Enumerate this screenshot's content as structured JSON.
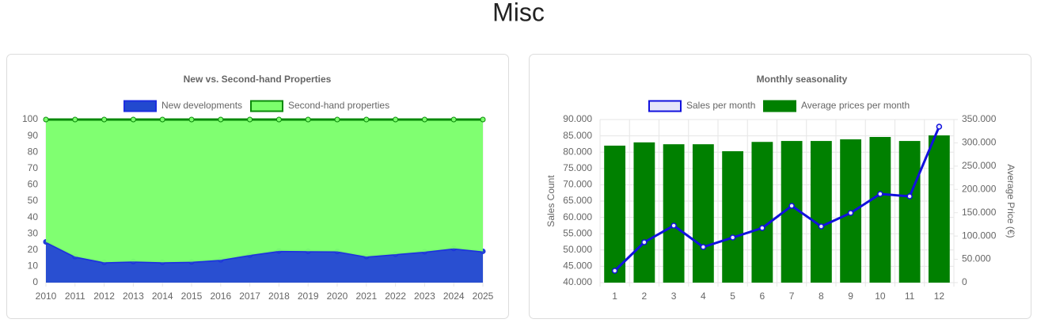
{
  "page_title": "Misc",
  "chart_data": [
    {
      "type": "area",
      "stacked": true,
      "title": "New vs. Second-hand Properties",
      "categories": [
        "2010",
        "2011",
        "2012",
        "2013",
        "2014",
        "2015",
        "2016",
        "2017",
        "2018",
        "2019",
        "2020",
        "2021",
        "2022",
        "2023",
        "2024",
        "2025"
      ],
      "series": [
        {
          "name": "New developments",
          "color": "#1c2ee0",
          "fill_color": "#2249cf",
          "values": [
            25,
            16,
            12.5,
            13,
            12.5,
            12.8,
            14,
            17,
            19.5,
            19.3,
            19.2,
            16,
            17.5,
            19,
            21,
            19.2
          ]
        },
        {
          "name": "Second-hand properties",
          "color": "#0a8a0a",
          "fill_color": "#7cff6c",
          "values": [
            75,
            84,
            87.5,
            87,
            87.5,
            87.2,
            86,
            83,
            80.5,
            80.7,
            80.8,
            84,
            82.5,
            81,
            79,
            80.8
          ]
        }
      ],
      "ylim": [
        0,
        100
      ],
      "yticks": [
        0,
        10,
        20,
        30,
        40,
        50,
        60,
        70,
        80,
        90,
        100
      ],
      "grid": true
    },
    {
      "type": "combo",
      "title": "Monthly seasonality",
      "categories": [
        "1",
        "2",
        "3",
        "4",
        "5",
        "6",
        "7",
        "8",
        "9",
        "10",
        "11",
        "12"
      ],
      "ylabel": "Sales Count",
      "y2label": "Average Price (€)",
      "series": [
        {
          "name": "Sales per month",
          "type": "line",
          "color": "#1111dd",
          "fill_color": "#e6e6fa",
          "values": [
            43640,
            52380,
            57480,
            50920,
            53830,
            56750,
            63540,
            57230,
            61360,
            67180,
            66460,
            87820
          ]
        },
        {
          "name": "Average prices per month",
          "type": "bar",
          "axis": "y2",
          "color": "#008000",
          "values": [
            294000,
            301000,
            297000,
            297000,
            282000,
            302000,
            304000,
            304000,
            307500,
            312600,
            304000,
            316000
          ]
        }
      ],
      "ylim": [
        40000,
        90000
      ],
      "yticks": [
        {
          "value": 40000,
          "label": "40.000"
        },
        {
          "value": 45000,
          "label": "45.000"
        },
        {
          "value": 50000,
          "label": "50.000"
        },
        {
          "value": 55000,
          "label": "55.000"
        },
        {
          "value": 60000,
          "label": "60.000"
        },
        {
          "value": 65000,
          "label": "65.000"
        },
        {
          "value": 70000,
          "label": "70.000"
        },
        {
          "value": 75000,
          "label": "75.000"
        },
        {
          "value": 80000,
          "label": "80.000"
        },
        {
          "value": 85000,
          "label": "85.000"
        },
        {
          "value": 90000,
          "label": "90.000"
        }
      ],
      "y2lim": [
        0,
        350000
      ],
      "y2ticks": [
        0,
        {
          "value": 50000,
          "label": "50.000"
        },
        {
          "value": 100000,
          "label": "100.000"
        },
        {
          "value": 150000,
          "label": "150.000"
        },
        {
          "value": 200000,
          "label": "200.000"
        },
        {
          "value": 250000,
          "label": "250.000"
        },
        {
          "value": 300000,
          "label": "300.000"
        },
        {
          "value": 350000,
          "label": "350.000"
        }
      ],
      "grid": true
    }
  ]
}
